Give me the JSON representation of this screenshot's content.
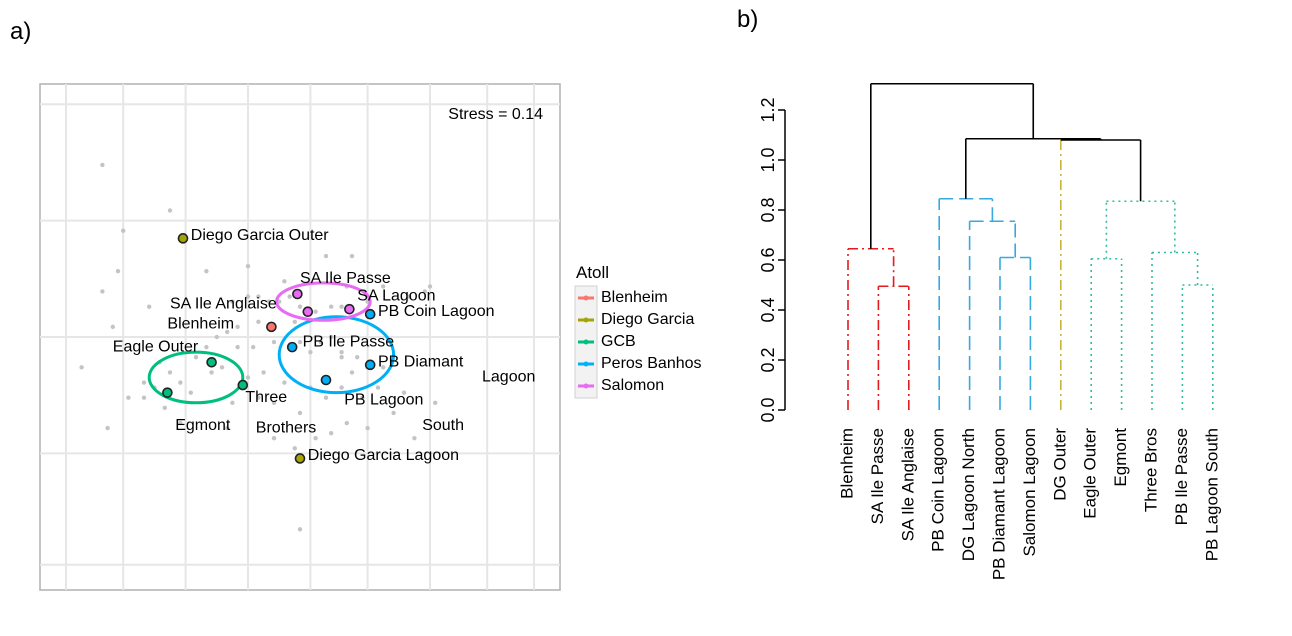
{
  "panel_a": {
    "label": "a)"
  },
  "panel_b": {
    "label": "b)"
  },
  "chart_data": [
    {
      "type": "scatter",
      "title": "",
      "stress_label": "Stress = 0.14",
      "legend": {
        "title": "Atoll",
        "placement": "right",
        "entries": [
          {
            "name": "Blenheim",
            "color": "#F8766D"
          },
          {
            "name": "Diego Garcia",
            "color": "#A3A500"
          },
          {
            "name": "GCB",
            "color": "#00BF7D"
          },
          {
            "name": "Peros Banhos",
            "color": "#00B0F6"
          },
          {
            "name": "Salomon",
            "color": "#E76BF3"
          }
        ]
      },
      "xlim": [
        0,
        100
      ],
      "ylim": [
        0,
        100
      ],
      "grid": true,
      "background_points": [
        [
          12,
          84
        ],
        [
          25,
          75
        ],
        [
          12,
          59
        ],
        [
          21,
          56
        ],
        [
          32,
          63
        ],
        [
          40,
          64
        ],
        [
          47,
          61
        ],
        [
          55,
          66
        ],
        [
          59,
          60
        ],
        [
          60,
          66
        ],
        [
          63,
          57
        ],
        [
          66,
          60
        ],
        [
          71,
          58
        ],
        [
          74,
          59
        ],
        [
          75,
          60
        ],
        [
          37,
          57
        ],
        [
          40,
          58
        ],
        [
          42,
          58
        ],
        [
          44,
          57
        ],
        [
          46,
          57
        ],
        [
          48,
          58
        ],
        [
          50,
          56
        ],
        [
          53,
          55
        ],
        [
          56,
          56
        ],
        [
          49,
          53
        ],
        [
          42,
          53
        ],
        [
          45,
          52
        ],
        [
          38,
          52
        ],
        [
          36,
          51
        ],
        [
          34,
          50
        ],
        [
          38,
          48
        ],
        [
          41,
          48
        ],
        [
          45,
          49
        ],
        [
          48,
          48
        ],
        [
          50,
          49
        ],
        [
          52,
          47
        ],
        [
          54,
          49
        ],
        [
          56,
          50
        ],
        [
          58,
          47
        ],
        [
          61,
          46
        ],
        [
          60,
          43
        ],
        [
          63,
          44
        ],
        [
          66,
          44
        ],
        [
          30,
          46
        ],
        [
          32,
          48
        ],
        [
          35,
          44
        ],
        [
          33,
          43
        ],
        [
          27,
          41
        ],
        [
          25,
          43
        ],
        [
          23,
          45
        ],
        [
          22,
          40
        ],
        [
          29,
          39
        ],
        [
          24,
          36
        ],
        [
          27,
          33
        ],
        [
          17,
          38
        ],
        [
          20,
          41
        ],
        [
          14,
          52
        ],
        [
          42,
          38
        ],
        [
          45,
          37
        ],
        [
          50,
          35
        ],
        [
          52,
          40
        ],
        [
          55,
          38
        ],
        [
          58,
          40
        ],
        [
          62,
          38
        ],
        [
          65,
          40
        ],
        [
          47,
          41
        ],
        [
          43,
          43
        ],
        [
          40,
          42
        ],
        [
          37,
          37
        ],
        [
          36,
          32
        ],
        [
          45,
          30
        ],
        [
          49,
          28
        ],
        [
          53,
          30
        ],
        [
          56,
          31
        ],
        [
          59,
          33
        ],
        [
          63,
          32
        ],
        [
          68,
          35
        ],
        [
          72,
          30
        ],
        [
          76,
          37
        ],
        [
          8,
          44
        ],
        [
          13,
          32
        ],
        [
          20,
          38
        ],
        [
          50,
          12
        ],
        [
          58,
          46
        ],
        [
          58,
          56
        ],
        [
          70,
          39
        ],
        [
          15,
          63
        ],
        [
          16,
          71
        ]
      ],
      "ellipses": [
        {
          "group": "GCB",
          "cx": 30,
          "cy": 42,
          "rx": 9,
          "ry": 5
        },
        {
          "group": "Peros Banhos",
          "cx": 57,
          "cy": 46.5,
          "rx": 11,
          "ry": 7.5
        },
        {
          "group": "Salomon",
          "cx": 54.5,
          "cy": 57,
          "rx": 9,
          "ry": 3.7
        }
      ],
      "points": [
        {
          "label": "Diego Garcia Outer",
          "group": "Diego Garcia",
          "x": 27.5,
          "y": 69.5
        },
        {
          "label": "SA Ile Passe",
          "group": "Salomon",
          "x": 49.5,
          "y": 58.5
        },
        {
          "label": "SA Ile Anglaise",
          "group": "Salomon",
          "x": 51.5,
          "y": 55
        },
        {
          "label": "SA Lagoon",
          "group": "Salomon",
          "x": 59.5,
          "y": 55.5
        },
        {
          "label": "PB Coin Lagoon",
          "group": "Peros Banhos",
          "x": 63.5,
          "y": 54.5
        },
        {
          "label": "Blenheim",
          "group": "Blenheim",
          "x": 44.5,
          "y": 52
        },
        {
          "label": "PB Ile Passe",
          "group": "Peros Banhos",
          "x": 48.5,
          "y": 48
        },
        {
          "label": "PB Diamant",
          "group": "Peros Banhos",
          "x": 63.5,
          "y": 44.5
        },
        {
          "label": "Eagle Outer",
          "group": "GCB",
          "x": 33,
          "y": 45
        },
        {
          "label": "Three Brothers",
          "group": "GCB",
          "x": 39,
          "y": 40.5
        },
        {
          "label": "Egmont",
          "group": "GCB",
          "x": 24.5,
          "y": 39
        },
        {
          "label": "PB Lagoon South",
          "group": "Peros Banhos",
          "x": 55,
          "y": 41.5
        },
        {
          "label": "Diego Garcia Lagoon",
          "group": "Diego Garcia",
          "x": 50,
          "y": 26
        }
      ],
      "point_labels": [
        {
          "text": "Diego Garcia Outer",
          "x": 29,
          "y": 70
        },
        {
          "text": "SA Ile Passe",
          "x": 50,
          "y": 61.5
        },
        {
          "text": "SA Ile Anglaise",
          "x": 25,
          "y": 56.5
        },
        {
          "text": "SA Lagoon",
          "x": 61,
          "y": 58
        },
        {
          "text": "PB Coin Lagoon",
          "x": 65,
          "y": 55
        },
        {
          "text": "Blenheim",
          "x": 24.5,
          "y": 52.5
        },
        {
          "text": "PB Ile Passe",
          "x": 50.5,
          "y": 49
        },
        {
          "text": "PB Diamant",
          "x": 65,
          "y": 45
        },
        {
          "text": "Eagle Outer",
          "x": 14,
          "y": 48
        },
        {
          "text": "Three",
          "x": 39.5,
          "y": 38
        },
        {
          "text": "Brothers",
          "x": 41.5,
          "y": 32
        },
        {
          "text": "Egmont",
          "x": 26,
          "y": 32.5
        },
        {
          "text": "PB Lagoon",
          "x": 58.5,
          "y": 37.5
        },
        {
          "text": "Lagoon",
          "x": 85,
          "y": 42
        },
        {
          "text": "South",
          "x": 73.5,
          "y": 32.5
        },
        {
          "text": "Diego Garcia Lagoon",
          "x": 51.5,
          "y": 26.5
        }
      ]
    },
    {
      "type": "dendrogram",
      "title": "",
      "ylim": [
        0,
        1.3
      ],
      "yticks": [
        0.0,
        0.2,
        0.4,
        0.6,
        0.8,
        1.0,
        1.2
      ],
      "leaves": [
        "Blenheim",
        "SA Ile Passe",
        "SA Ile Anglaise",
        "PB Coin Lagoon",
        "DG Lagoon North",
        "PB Diamant Lagoon",
        "Salomon Lagoon",
        "DG Outer",
        "Eagle Outer",
        "Egmont",
        "Three Bros",
        "PB Ile Passe",
        "PB Lagoon South"
      ],
      "cluster_colors": {
        "red": "#E41A1C",
        "blue": "#36A9E1",
        "olive": "#C9B53A",
        "teal": "#2EBD9E",
        "black": "#000000"
      },
      "merges": [
        {
          "a": 1,
          "b": 2,
          "height": 0.495,
          "color": "red",
          "dash": "dashdot"
        },
        {
          "a": 0,
          "b": "m0",
          "height": 0.645,
          "color": "red",
          "dash": "dashdot"
        },
        {
          "a": 5,
          "b": 6,
          "height": 0.61,
          "color": "blue",
          "dash": "dashed"
        },
        {
          "a": 4,
          "b": "m2",
          "height": 0.755,
          "color": "blue",
          "dash": "dashed"
        },
        {
          "a": 3,
          "b": "m3",
          "height": 0.845,
          "color": "blue",
          "dash": "dashed"
        },
        {
          "a": 11,
          "b": 12,
          "height": 0.5,
          "color": "teal",
          "dash": "dotted"
        },
        {
          "a": 8,
          "b": 9,
          "height": 0.605,
          "color": "teal",
          "dash": "dotted"
        },
        {
          "a": 10,
          "b": "m5",
          "height": 0.63,
          "color": "teal",
          "dash": "dotted"
        },
        {
          "a": "m6",
          "b": "m7",
          "height": 0.835,
          "color": "teal",
          "dash": "dotted"
        },
        {
          "a": 7,
          "b": "m8",
          "height": 1.08,
          "color": "black",
          "dash": "solid"
        },
        {
          "a": "m4",
          "b": "m9",
          "height": 1.085,
          "color": "black",
          "dash": "solid"
        },
        {
          "a": "m1",
          "b": "m10",
          "height": 1.305,
          "color": "black",
          "dash": "solid"
        }
      ],
      "dg_leaf_color": "olive",
      "dg_leaf_dash": "dashdot"
    }
  ]
}
